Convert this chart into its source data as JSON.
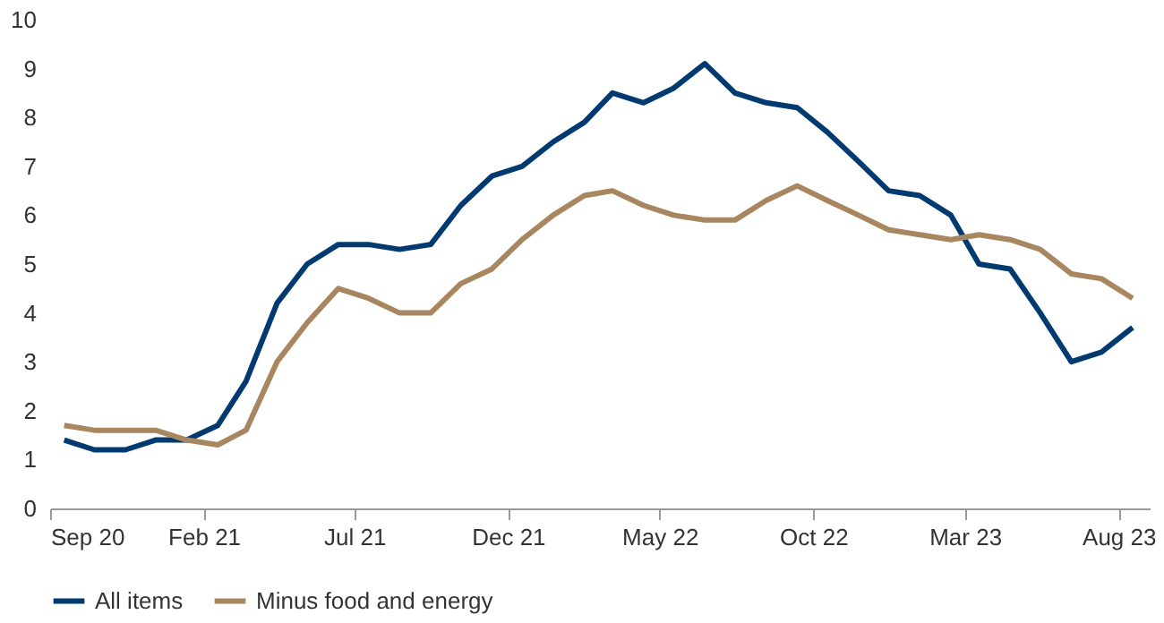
{
  "chart_data": {
    "type": "line",
    "x": [
      "2020-09-15",
      "2020-10-15",
      "2020-11-15",
      "2020-12-15",
      "2021-01-15",
      "2021-02-15",
      "2021-03-15",
      "2021-04-15",
      "2021-05-15",
      "2021-06-15",
      "2021-07-15",
      "2021-08-15",
      "2021-09-15",
      "2021-10-15",
      "2021-11-15",
      "2021-12-15",
      "2022-01-15",
      "2022-02-15",
      "2022-03-15",
      "2022-04-15",
      "2022-05-15",
      "2022-06-15",
      "2022-07-15",
      "2022-08-15",
      "2022-09-15",
      "2022-10-15",
      "2022-11-15",
      "2022-12-15",
      "2023-01-15",
      "2023-02-15",
      "2023-03-15",
      "2023-04-15",
      "2023-05-15",
      "2023-06-15",
      "2023-07-15",
      "2023-08-15"
    ],
    "series": [
      {
        "name": "All items",
        "color": "#003a70",
        "values": [
          1.4,
          1.2,
          1.2,
          1.4,
          1.4,
          1.7,
          2.6,
          4.2,
          5.0,
          5.4,
          5.4,
          5.3,
          5.4,
          6.2,
          6.8,
          7.0,
          7.5,
          7.9,
          8.5,
          8.3,
          8.6,
          9.1,
          8.5,
          8.3,
          8.2,
          7.7,
          7.1,
          6.5,
          6.4,
          6.0,
          5.0,
          4.9,
          4.0,
          3.0,
          3.2,
          3.7
        ]
      },
      {
        "name": "Minus food and energy",
        "color": "#a88660",
        "values": [
          1.7,
          1.6,
          1.6,
          1.6,
          1.4,
          1.3,
          1.6,
          3.0,
          3.8,
          4.5,
          4.3,
          4.0,
          4.0,
          4.6,
          4.9,
          5.5,
          6.0,
          6.4,
          6.5,
          6.2,
          6.0,
          5.9,
          5.9,
          6.3,
          6.6,
          6.3,
          6.0,
          5.7,
          5.6,
          5.5,
          5.6,
          5.5,
          5.3,
          4.8,
          4.7,
          4.3
        ]
      }
    ],
    "xlim": [
      "2020-09-01",
      "2023-09-01"
    ],
    "xticks": [
      {
        "value": "2020-09-01",
        "label": "Sep 20"
      },
      {
        "value": "2021-02-01",
        "label": "Feb 21"
      },
      {
        "value": "2021-07-01",
        "label": "Jul 21"
      },
      {
        "value": "2021-12-01",
        "label": "Dec 21"
      },
      {
        "value": "2022-05-01",
        "label": "May 22"
      },
      {
        "value": "2022-10-01",
        "label": "Oct 22"
      },
      {
        "value": "2023-03-01",
        "label": "Mar 23"
      },
      {
        "value": "2023-08-01",
        "label": "Aug 23"
      }
    ],
    "ylim": [
      0,
      10
    ],
    "yticks": [
      0,
      1,
      2,
      3,
      4,
      5,
      6,
      7,
      8,
      9,
      10
    ],
    "grid": false,
    "legend": "bottom",
    "marker": "none",
    "line_style": "solid"
  }
}
